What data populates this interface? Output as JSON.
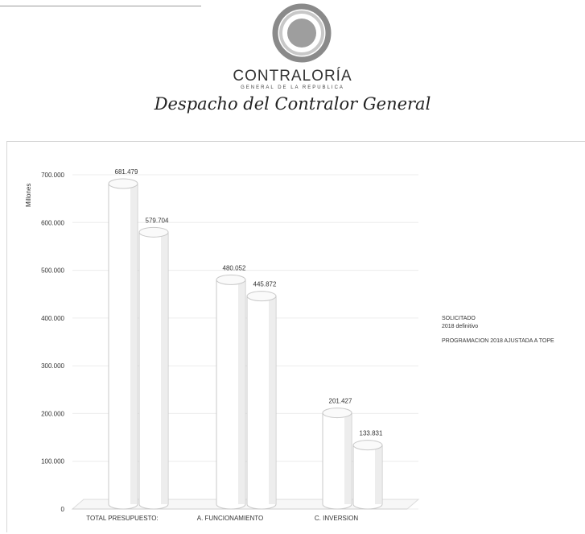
{
  "header": {
    "org_name": "CONTRALORÍA",
    "org_subtitle": "GENERAL DE LA REPUBLICA",
    "office": "Despacho del Contralor General"
  },
  "colors": {
    "logo_ring_outer": "#8a8a8a",
    "logo_ring_inner": "#c8c8c8",
    "logo_center": "#9e9e9e",
    "bar_fill": "#ffffff",
    "bar_stroke": "#c8c8c8",
    "grid": "#ececec"
  },
  "chart_data": {
    "type": "bar",
    "ylabel": "Millones",
    "ylim": [
      0,
      700000
    ],
    "yticks": [
      "0",
      "100.000",
      "200.000",
      "300.000",
      "400.000",
      "500.000",
      "600.000",
      "700.000"
    ],
    "ytick_values": [
      0,
      100000,
      200000,
      300000,
      400000,
      500000,
      600000,
      700000
    ],
    "categories": [
      "TOTAL PRESUPUESTO:",
      "A. FUNCIONAMIENTO",
      "C. INVERSION"
    ],
    "series": [
      {
        "name": "SOLICITADO 2018 definitivo",
        "values": [
          681479,
          480052,
          201427
        ],
        "labels": [
          "681.479",
          "480.052",
          "201.427"
        ]
      },
      {
        "name": "PROGRAMACION 2018 AJUSTADA A TOPE",
        "values": [
          579704,
          445872,
          133831
        ],
        "labels": [
          "579.704",
          "445.872",
          "133.831"
        ]
      }
    ],
    "legend": [
      "SOLICITADO",
      "2018 definitivo",
      "PROGRAMACION 2018 AJUSTADA A TOPE"
    ],
    "legend_position": "right",
    "grid": true
  }
}
